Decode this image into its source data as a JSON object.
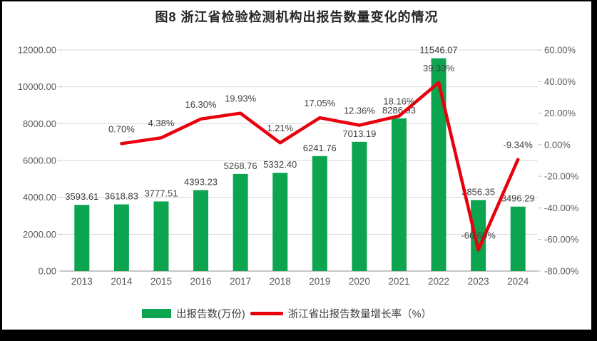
{
  "chart": {
    "title": "图8 浙江省检验检测机构出报告数量变化的情况"
  },
  "legend": {
    "items": [
      {
        "label": "出报告数(万份)",
        "color": "#0DA450",
        "marker": "bar-swatch"
      },
      {
        "label": "浙江省出报告数量增长率（%）",
        "color": "#E8000D",
        "marker": "line-swatch"
      }
    ]
  },
  "chart_data": {
    "type": "combo-bar-line",
    "title": "图8 浙江省检验检测机构出报告数量变化的情况",
    "categories": [
      "2013",
      "2014",
      "2015",
      "2016",
      "2017",
      "2018",
      "2019",
      "2020",
      "2021",
      "2022",
      "2023",
      "2024"
    ],
    "series": [
      {
        "name": "出报告数(万份)",
        "type": "bar",
        "axis": "left",
        "color": "#0DA450",
        "values": [
          3593.61,
          3618.83,
          3777.51,
          4393.23,
          5268.76,
          5332.4,
          6241.76,
          7013.19,
          8286.93,
          11546.07,
          3856.35,
          3496.29
        ]
      },
      {
        "name": "浙江省出报告数量增长率（%）",
        "type": "line",
        "axis": "right",
        "unit": "%",
        "color": "#E8000D",
        "values": [
          null,
          0.7,
          4.38,
          16.3,
          19.93,
          1.21,
          17.05,
          12.36,
          18.16,
          39.33,
          -66.6,
          -9.34
        ]
      }
    ],
    "left_axis": {
      "min": 0,
      "max": 12000,
      "step": 2000,
      "tick_format": "0.00"
    },
    "right_axis": {
      "min": -80,
      "max": 60,
      "step": 20,
      "tick_format": "0.00%"
    },
    "grid": true,
    "data_labels": true,
    "legend_position": "bottom"
  },
  "colors": {
    "bar": "#0DA450",
    "line": "#E8000D",
    "grid": "#D9D9D9",
    "axis": "#BFBFBF",
    "tick_text": "#595959",
    "label_text": "#404040",
    "title_text": "#262626",
    "frame": "#000000",
    "canvas": "#FFFFFF"
  }
}
